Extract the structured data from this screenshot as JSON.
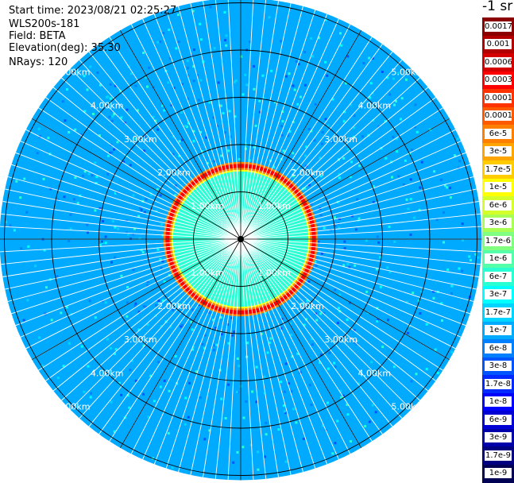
{
  "header": {
    "start_time": "Start time: 2023/08/21 02:25:27",
    "instrument": "WLS200s-181",
    "field": "Field: BETA",
    "elevation": "Elevation(deg): 35.30",
    "nrays": "NRays: 120"
  },
  "colorbar": {
    "unit_label": "-1 sr",
    "levels": [
      {
        "label": "0.0017",
        "color": "#8b0000"
      },
      {
        "label": "0.001",
        "color": "#b00000"
      },
      {
        "label": "0.0006",
        "color": "#d40000"
      },
      {
        "label": "0.0003",
        "color": "#ff0000"
      },
      {
        "label": "0.00017",
        "color": "#ff3300"
      },
      {
        "label": "0.0001",
        "color": "#ff5a00"
      },
      {
        "label": "6e-5",
        "color": "#ff8000"
      },
      {
        "label": "3e-5",
        "color": "#ffa500"
      },
      {
        "label": "1.7e-5",
        "color": "#ffcc00"
      },
      {
        "label": "1e-5",
        "color": "#ffff00"
      },
      {
        "label": "6e-6",
        "color": "#d4ff2a"
      },
      {
        "label": "3e-6",
        "color": "#aaff55"
      },
      {
        "label": "1.7e-6",
        "color": "#80ff80"
      },
      {
        "label": "1e-6",
        "color": "#55ffaa"
      },
      {
        "label": "6e-7",
        "color": "#2affd4"
      },
      {
        "label": "3e-7",
        "color": "#00ffff"
      },
      {
        "label": "1.7e-7",
        "color": "#00d4ff"
      },
      {
        "label": "1e-7",
        "color": "#00aaff"
      },
      {
        "label": "6e-8",
        "color": "#0080ff"
      },
      {
        "label": "3e-8",
        "color": "#0055ff"
      },
      {
        "label": "1.7e-8",
        "color": "#002aff"
      },
      {
        "label": "1e-8",
        "color": "#0000ff"
      },
      {
        "label": "6e-9",
        "color": "#0000d4"
      },
      {
        "label": "3e-9",
        "color": "#0000aa"
      },
      {
        "label": "1.7e-9",
        "color": "#000080"
      },
      {
        "label": "1e-9",
        "color": "#000055"
      }
    ]
  },
  "plot": {
    "nrays": 120,
    "range_rings_km": [
      1,
      2,
      3,
      4,
      5
    ],
    "ring_labels": [
      "1.00km",
      "2.00km",
      "3.00km",
      "4.00km",
      "5.00km"
    ],
    "aerosol_ring_km": 1.55,
    "colors": {
      "background": "#00aaff",
      "inner": "#2affd4",
      "ring_red": "#ff0000",
      "ring_yellow": "#ffff00",
      "grid": "#000000",
      "ray_gap": "#ffffff"
    }
  }
}
